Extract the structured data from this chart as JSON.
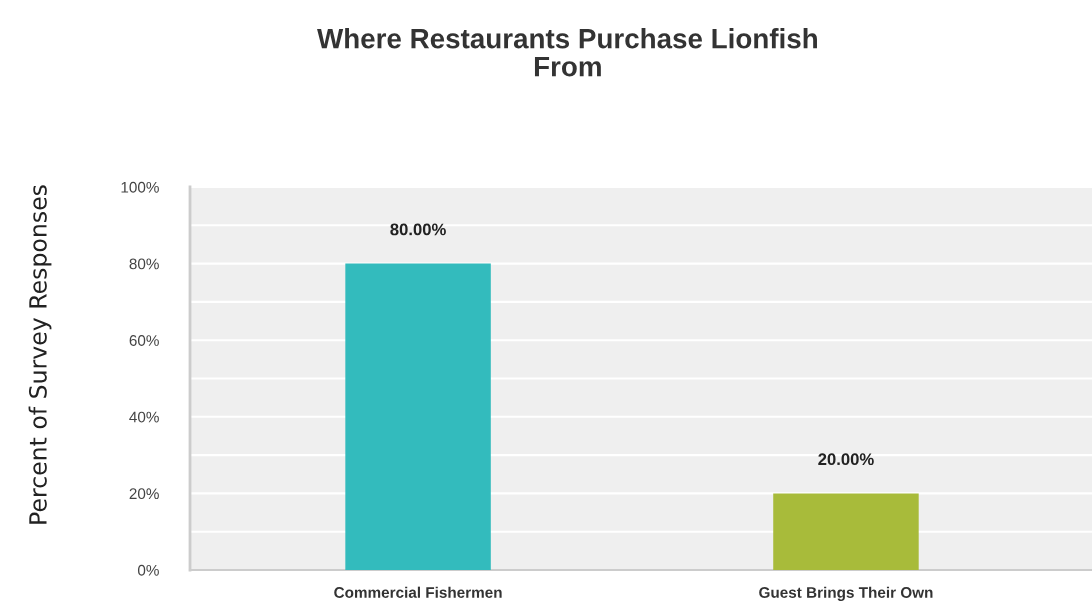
{
  "chart_data": {
    "type": "bar",
    "title": "Where Restaurants Purchase Lionfish\nFrom",
    "ylabel": "Percent of Survey Responses",
    "categories": [
      "Commercial Fishermen",
      "Guest Brings Their Own"
    ],
    "values": [
      80,
      20
    ],
    "colors": [
      "#33bbbd",
      "#a8bb3a"
    ],
    "value_labels": [
      "80.00%",
      "20.00%"
    ],
    "ylim": [
      0,
      100
    ],
    "yticks": [
      {
        "value": 0,
        "label": "0%"
      },
      {
        "value": 10,
        "label": null
      },
      {
        "value": 20,
        "label": "20%"
      },
      {
        "value": 30,
        "label": null
      },
      {
        "value": 40,
        "label": "40%"
      },
      {
        "value": 50,
        "label": null
      },
      {
        "value": 60,
        "label": "60%"
      },
      {
        "value": 70,
        "label": null
      },
      {
        "value": 80,
        "label": "80%"
      },
      {
        "value": 90,
        "label": null
      },
      {
        "value": 100,
        "label": "100%"
      }
    ],
    "grid": "y"
  }
}
